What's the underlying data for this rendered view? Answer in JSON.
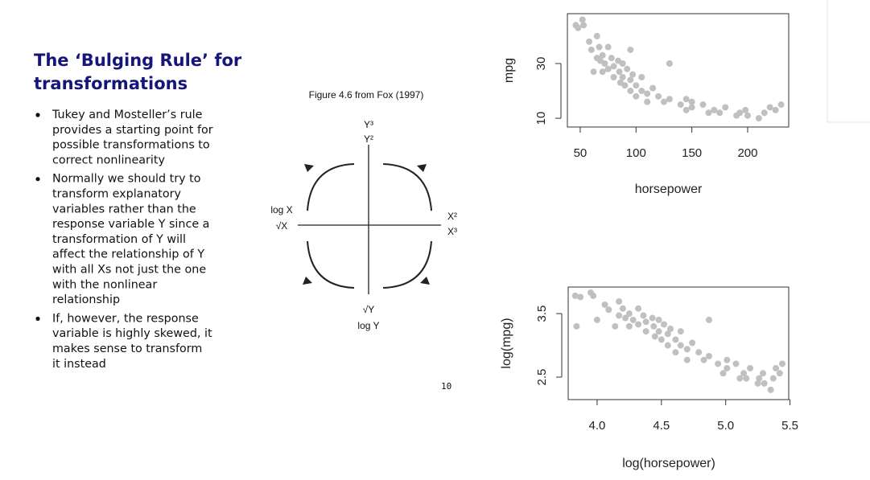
{
  "slide": {
    "title": [
      "The ‘Bulging Rule’ for",
      "transformations"
    ],
    "bullets": [
      [
        "Tukey and Mosteller’s rule",
        "provides a starting point for",
        "possible transformations to",
        "correct nonlinearity"
      ],
      [
        "Normally we should try to",
        "transform explanatory",
        "variables rather than the",
        "response variable Y since a",
        "transformation of Y will",
        "affect the relationship of Y",
        "with all Xs not just the one",
        "with the nonlinear",
        "relationship"
      ],
      [
        "If, however, the response",
        "variable is highly skewed, it",
        "makes sense to transform",
        "it instead"
      ]
    ],
    "page_number": "10"
  },
  "figure": {
    "caption": "Figure 4.6 from Fox (1997)",
    "y_up": [
      "Y³",
      "Y²"
    ],
    "x_left": [
      "log X",
      "√X"
    ],
    "x_right": [
      "X²",
      "X³"
    ],
    "y_down": [
      "√Y",
      "log Y"
    ]
  },
  "chart_data": [
    {
      "type": "scatter",
      "xlabel": "horsepower",
      "ylabel": "mpg",
      "color": "#c0c0c0",
      "x": [
        46,
        48,
        52,
        53,
        58,
        60,
        65,
        65,
        67,
        68,
        70,
        70,
        72,
        75,
        75,
        78,
        80,
        80,
        84,
        85,
        86,
        88,
        88,
        90,
        92,
        95,
        95,
        97,
        100,
        100,
        105,
        105,
        110,
        110,
        115,
        120,
        125,
        130,
        140,
        145,
        150,
        150,
        160,
        165,
        170,
        175,
        180,
        190,
        193,
        198,
        200,
        210,
        215,
        220,
        225,
        230,
        130,
        62,
        95,
        145
      ],
      "values": [
        44,
        43,
        46,
        44,
        38,
        35,
        40,
        32,
        36,
        31,
        33,
        27,
        30,
        36,
        28,
        32,
        29,
        25,
        31,
        27,
        23,
        30,
        25,
        22,
        28,
        24,
        20,
        26,
        22,
        18,
        25,
        20,
        19,
        16,
        21,
        18,
        16,
        17,
        15,
        13,
        16,
        14,
        15,
        12,
        13,
        12,
        14,
        11,
        12,
        13,
        11,
        10,
        12,
        14,
        13,
        15,
        30,
        27,
        35,
        17
      ],
      "xlim": [
        38.5,
        236.8
      ],
      "ylim": [
        6.8,
        48.2
      ],
      "xticks": [
        50,
        100,
        150,
        200
      ],
      "yticks": [
        10,
        30
      ]
    },
    {
      "type": "scatter",
      "xlabel": "log(horsepower)",
      "ylabel": "log(mpg)",
      "color": "#c0c0c0",
      "x": [
        3.83,
        3.87,
        3.95,
        3.97,
        4.06,
        4.09,
        4.17,
        4.17,
        4.2,
        4.22,
        4.25,
        4.25,
        4.28,
        4.32,
        4.32,
        4.36,
        4.38,
        4.38,
        4.43,
        4.44,
        4.45,
        4.48,
        4.48,
        4.5,
        4.52,
        4.55,
        4.55,
        4.57,
        4.61,
        4.61,
        4.65,
        4.65,
        4.7,
        4.7,
        4.74,
        4.79,
        4.83,
        4.87,
        4.94,
        4.98,
        5.01,
        5.01,
        5.08,
        5.11,
        5.14,
        5.16,
        5.19,
        5.25,
        5.26,
        5.29,
        5.3,
        5.35,
        5.37,
        5.39,
        5.42,
        5.44,
        3.84,
        4.14,
        4.0,
        4.87
      ],
      "values": [
        3.78,
        3.76,
        3.83,
        3.78,
        3.64,
        3.56,
        3.69,
        3.47,
        3.58,
        3.43,
        3.5,
        3.3,
        3.4,
        3.58,
        3.33,
        3.47,
        3.37,
        3.22,
        3.43,
        3.3,
        3.14,
        3.4,
        3.22,
        3.09,
        3.33,
        3.18,
        3.0,
        3.26,
        3.09,
        2.89,
        3.22,
        3.0,
        2.94,
        2.77,
        3.04,
        2.89,
        2.77,
        2.83,
        2.71,
        2.56,
        2.77,
        2.64,
        2.71,
        2.48,
        2.56,
        2.48,
        2.64,
        2.4,
        2.48,
        2.56,
        2.4,
        2.3,
        2.48,
        2.64,
        2.56,
        2.71,
        3.3,
        3.3,
        3.4,
        3.4
      ],
      "xlim": [
        3.775,
        5.49
      ],
      "ylim": [
        2.146,
        3.918
      ],
      "xticks": [
        {
          "value": 4.0,
          "label": "4.0"
        },
        4.5,
        {
          "value": 5.0,
          "label": "5.0"
        },
        5.5
      ],
      "yticks": [
        2.5,
        3.5
      ]
    }
  ]
}
